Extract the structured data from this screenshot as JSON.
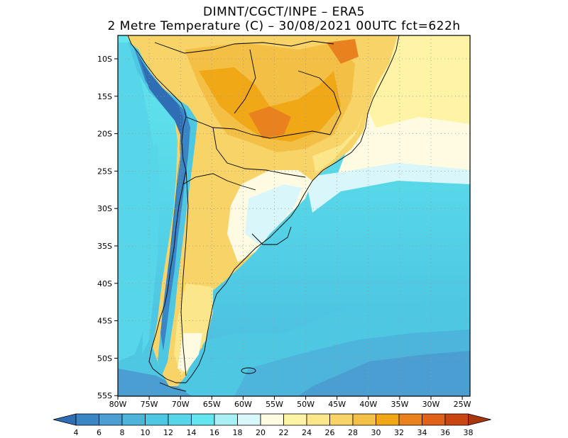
{
  "header": {
    "line1": "DIMNT/CGCT/INPE –  ERA5",
    "line2": "2 Metre Temperature (C) –  30/08/2021 00UTC fct=622h"
  },
  "map": {
    "lat_labels": [
      "10S",
      "15S",
      "20S",
      "25S",
      "30S",
      "35S",
      "40S",
      "45S",
      "50S",
      "55S"
    ],
    "lon_labels": [
      "80W",
      "75W",
      "70W",
      "65W",
      "60W",
      "55W",
      "50W",
      "45W",
      "40W",
      "35W",
      "30W",
      "25W"
    ],
    "grid": "dotted"
  },
  "colorbar": {
    "labels": [
      "4",
      "6",
      "8",
      "10",
      "12",
      "14",
      "16",
      "18",
      "20",
      "22",
      "24",
      "26",
      "28",
      "30",
      "32",
      "34",
      "36",
      "38"
    ],
    "colors": [
      "#2f6eb5",
      "#3a86c4",
      "#4a9ed2",
      "#4db5dc",
      "#4ec7e3",
      "#56d6e8",
      "#63e6ee",
      "#a9f0f5",
      "#d9f7fa",
      "#fffbe3",
      "#fff3a6",
      "#fbe68a",
      "#f7d368",
      "#f3c045",
      "#f0a817",
      "#e9821e",
      "#e1621a",
      "#c94613",
      "#a8370f"
    ]
  }
}
